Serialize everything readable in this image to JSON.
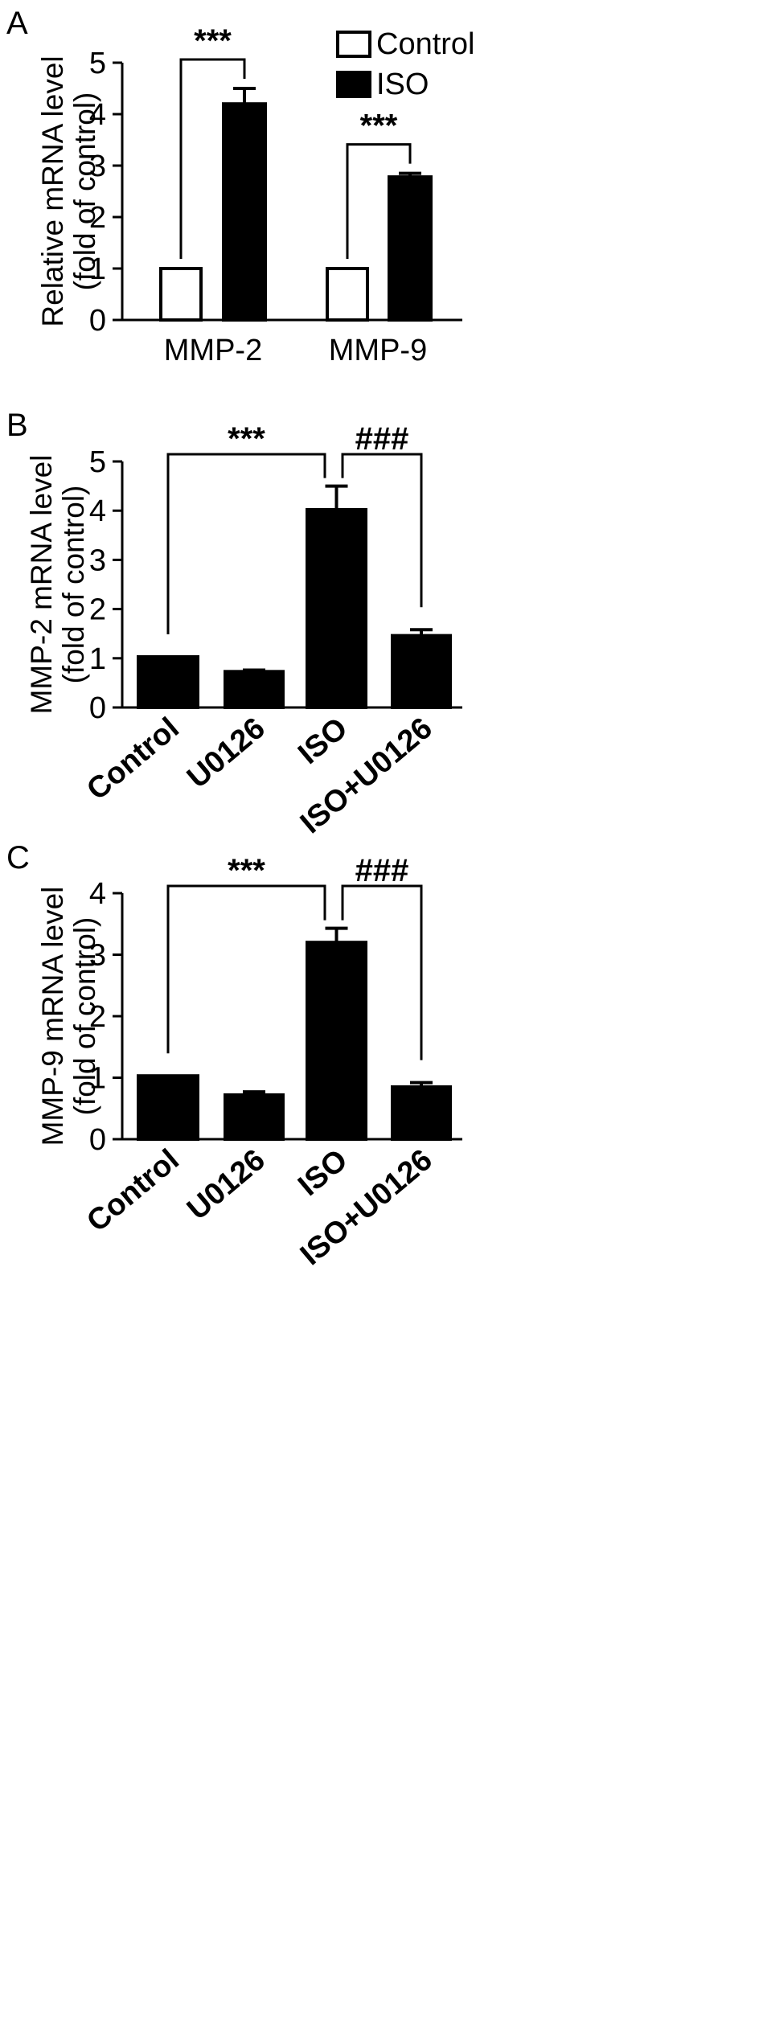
{
  "chart_data": [
    {
      "panel": "A",
      "type": "bar",
      "categories": [
        "MMP-2",
        "MMP-9"
      ],
      "series": [
        {
          "name": "Control",
          "values": [
            1.0,
            1.0
          ],
          "errors": [
            0,
            0
          ],
          "fill": "#ffffff"
        },
        {
          "name": "ISO",
          "values": [
            4.2,
            2.78
          ],
          "errors": [
            0.3,
            0.07
          ],
          "fill": "#000000"
        }
      ],
      "ylabel_lines": [
        "Relative mRNA level",
        "(fold of control)"
      ],
      "ylim": [
        0,
        5
      ],
      "yticks": [
        0,
        1,
        2,
        3,
        4,
        5
      ],
      "legend": "top-right",
      "significance": [
        {
          "text": "***",
          "category": 0
        },
        {
          "text": "***",
          "category": 1
        }
      ]
    },
    {
      "panel": "B",
      "type": "bar",
      "categories": [
        "Control",
        "U0126",
        "ISO",
        "ISO+U0126"
      ],
      "values": [
        1.03,
        0.73,
        4.02,
        1.46
      ],
      "errors": [
        0,
        0.03,
        0.48,
        0.12
      ],
      "ylabel_lines": [
        "MMP-2 mRNA level",
        "(fold of control)"
      ],
      "ylim": [
        0,
        5
      ],
      "yticks": [
        0,
        1,
        2,
        3,
        4,
        5
      ],
      "significance": [
        {
          "text": "***",
          "from": 0,
          "to": 2
        },
        {
          "text": "###",
          "from": 2,
          "to": 3
        }
      ]
    },
    {
      "panel": "C",
      "type": "bar",
      "categories": [
        "Control",
        "U0126",
        "ISO",
        "ISO+U0126"
      ],
      "values": [
        1.03,
        0.72,
        3.2,
        0.85
      ],
      "errors": [
        0,
        0.05,
        0.23,
        0.07
      ],
      "ylabel_lines": [
        "MMP-9 mRNA level",
        "(fold of control)"
      ],
      "ylim": [
        0,
        4
      ],
      "yticks": [
        0,
        1,
        2,
        3,
        4
      ],
      "significance": [
        {
          "text": "***",
          "from": 0,
          "to": 2
        },
        {
          "text": "###",
          "from": 2,
          "to": 3
        }
      ]
    }
  ]
}
